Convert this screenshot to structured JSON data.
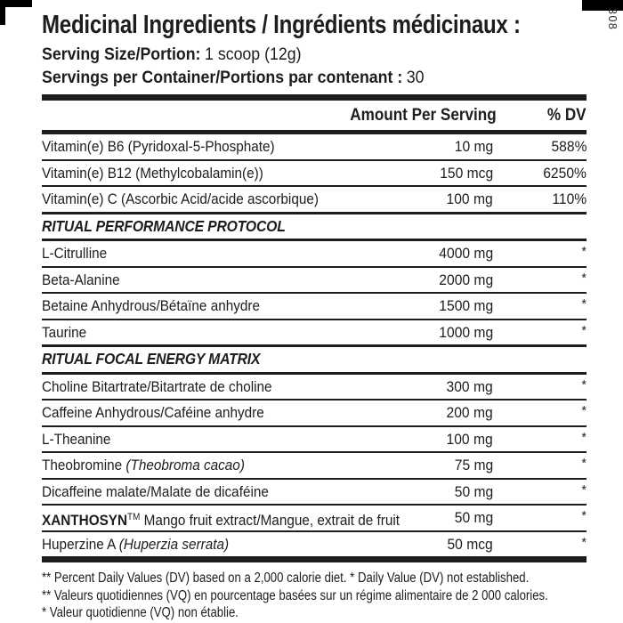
{
  "colors": {
    "ink": "#1d1d1d",
    "background": "#ffffff"
  },
  "label": {
    "side_number": "308"
  },
  "header": {
    "title": "Medicinal Ingredients / Ingrédients médicinaux :",
    "serving_size_label": "Serving Size/Portion:",
    "serving_size_value": "1 scoop (12g)",
    "servings_label": "Servings per Container/Portions par contenant :",
    "servings_value": "30"
  },
  "table": {
    "columns": {
      "amount": "Amount Per Serving",
      "dv": "% DV"
    },
    "rows": [
      {
        "type": "ingredient",
        "name": [
          {
            "t": "Vitamin(e) B6 (Pyridoxal-5-Phosphate)"
          }
        ],
        "amount": "10 mg",
        "dv": "588%"
      },
      {
        "type": "ingredient",
        "name": [
          {
            "t": "Vitamin(e) B12 (Methylcobalamin(e))"
          }
        ],
        "amount": "150 mcg",
        "dv": "6250%"
      },
      {
        "type": "ingredient",
        "name": [
          {
            "t": "Vitamin(e) C (Ascorbic Acid/acide ascorbique)"
          }
        ],
        "amount": "100 mg",
        "dv": "110%"
      },
      {
        "type": "section",
        "name": [
          {
            "t": "RITUAL PERFORMANCE PROTOCOL"
          }
        ]
      },
      {
        "type": "ingredient",
        "name": [
          {
            "t": "L-Citrulline"
          }
        ],
        "amount": "4000 mg",
        "dv": "*"
      },
      {
        "type": "ingredient",
        "name": [
          {
            "t": "Beta-Alanine"
          }
        ],
        "amount": "2000 mg",
        "dv": "*"
      },
      {
        "type": "ingredient",
        "name": [
          {
            "t": "Betaine Anhydrous/Bétaïne anhydre"
          }
        ],
        "amount": "1500 mg",
        "dv": "*"
      },
      {
        "type": "ingredient",
        "name": [
          {
            "t": "Taurine"
          }
        ],
        "amount": "1000 mg",
        "dv": "*"
      },
      {
        "type": "section",
        "name": [
          {
            "t": "RITUAL FOCAL ENERGY MATRIX"
          }
        ]
      },
      {
        "type": "ingredient",
        "name": [
          {
            "t": "Choline Bitartrate/Bitartrate de choline"
          }
        ],
        "amount": "300 mg",
        "dv": "*"
      },
      {
        "type": "ingredient",
        "name": [
          {
            "t": "Caffeine Anhydrous/Caféine anhydre"
          }
        ],
        "amount": "200 mg",
        "dv": "*"
      },
      {
        "type": "ingredient",
        "name": [
          {
            "t": "L-Theanine"
          }
        ],
        "amount": "100 mg",
        "dv": "*"
      },
      {
        "type": "ingredient",
        "name": [
          {
            "t": "Theobromine "
          },
          {
            "t": "(Theobroma cacao)",
            "i": true
          }
        ],
        "amount": "75 mg",
        "dv": "*"
      },
      {
        "type": "ingredient",
        "name": [
          {
            "t": "Dicaffeine malate/Malate de dicaféine"
          }
        ],
        "amount": "50 mg",
        "dv": "*"
      },
      {
        "type": "ingredient",
        "name": [
          {
            "t": "XANTHOSYN",
            "b": true
          },
          {
            "t": "TM",
            "sup": true
          },
          {
            "t": " Mango fruit extract/Mangue, extrait de fruit"
          }
        ],
        "amount": "50 mg",
        "dv": "*"
      },
      {
        "type": "ingredient",
        "name": [
          {
            "t": "Huperzine A "
          },
          {
            "t": "(Huperzia serrata)",
            "i": true
          }
        ],
        "amount": "50 mcg",
        "dv": "*"
      }
    ]
  },
  "footnotes": [
    "** Percent Daily Values (DV) based on a 2,000 calorie diet. * Daily Value (DV) not established.",
    "** Valeurs quotidiennes (VQ) en pourcentage basées sur un régime alimentaire de 2 000 calories.",
    "* Valeur quotidienne (VQ) non établie."
  ]
}
